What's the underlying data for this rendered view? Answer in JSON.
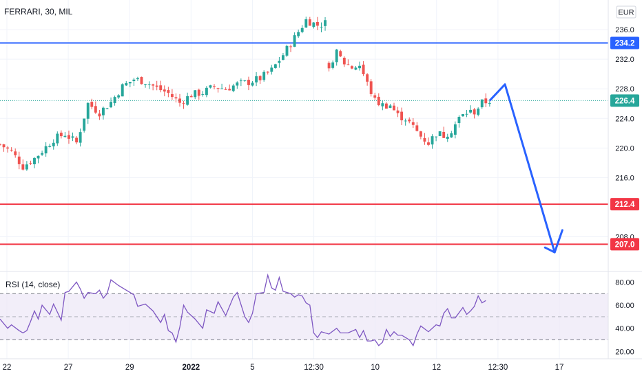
{
  "header": {
    "symbol_title": "FERRARI, 30, MIL",
    "currency_label": "EUR"
  },
  "colors": {
    "up": "#26a69a",
    "down": "#ef5350",
    "resistance": "#2962ff",
    "support": "#f23645",
    "rsi_line": "#7e57c2",
    "rsi_band": "#ede7f6",
    "grid": "#f0f3fa",
    "axis_text": "#131722"
  },
  "chart_data": [
    {
      "type": "candlestick",
      "title": "FERRARI, 30, MIL",
      "ylim": [
        203.5,
        240.0
      ],
      "y_ticks": [
        "236.0",
        "232.0",
        "228.0",
        "224.0",
        "220.0",
        "216.0",
        "208.0"
      ],
      "x_ticks": [
        "22",
        "27",
        "29",
        "2022",
        "5",
        "12:30",
        "10",
        "12",
        "12:30",
        "17"
      ],
      "last_price": 226.4,
      "price_labels": [
        {
          "name": "resistance",
          "value": "234.2"
        },
        {
          "name": "last",
          "value": "226.4"
        },
        {
          "name": "support-1",
          "value": "212.4"
        },
        {
          "name": "support-2",
          "value": "207.0"
        }
      ],
      "horizontal_lines": [
        {
          "name": "resistance",
          "value": 234.2,
          "color": "#2962ff"
        },
        {
          "name": "support-1",
          "value": 212.4,
          "color": "#f23645"
        },
        {
          "name": "support-2",
          "value": 207.0,
          "color": "#f23645"
        }
      ],
      "close_path": [
        [
          0,
          220.5
        ],
        [
          3,
          219.5
        ],
        [
          6,
          217.5
        ],
        [
          9,
          218.6
        ],
        [
          11,
          219.6
        ],
        [
          14,
          221.2
        ],
        [
          17,
          221.9
        ],
        [
          20,
          220.7
        ],
        [
          23,
          226.0
        ],
        [
          26,
          224.8
        ],
        [
          29,
          226.2
        ],
        [
          32,
          228.3
        ],
        [
          35,
          229.3
        ],
        [
          38,
          229.0
        ],
        [
          41,
          228.1
        ],
        [
          44,
          227.4
        ],
        [
          47,
          226.1
        ],
        [
          50,
          227.2
        ],
        [
          53,
          227.5
        ],
        [
          56,
          228.3
        ],
        [
          59,
          228.0
        ],
        [
          62,
          228.6
        ],
        [
          65,
          228.9
        ],
        [
          68,
          229.4
        ],
        [
          71,
          230.5
        ],
        [
          74,
          232.6
        ],
        [
          77,
          234.9
        ],
        [
          80,
          237.3
        ],
        [
          83,
          236.6
        ],
        [
          85,
          236.9
        ],
        [
          86,
          231.3
        ],
        [
          88,
          232.8
        ],
        [
          90,
          231.5
        ],
        [
          92,
          230.9
        ],
        [
          94,
          231.2
        ],
        [
          96,
          228.7
        ],
        [
          98,
          226.4
        ],
        [
          100,
          225.8
        ],
        [
          102,
          225.8
        ],
        [
          104,
          224.4
        ],
        [
          106,
          224.0
        ],
        [
          108,
          222.8
        ],
        [
          110,
          221.6
        ],
        [
          112,
          220.7
        ],
        [
          114,
          222.0
        ],
        [
          116,
          221.7
        ],
        [
          118,
          222.4
        ],
        [
          120,
          224.0
        ],
        [
          122,
          224.8
        ],
        [
          124,
          224.9
        ],
        [
          126,
          226.1
        ],
        [
          128,
          226.4
        ]
      ],
      "projection": [
        [
          128,
          226.4
        ],
        [
          132,
          228.6
        ],
        [
          145,
          205.9
        ],
        [
          147,
          208.9
        ]
      ],
      "x_max": 159
    },
    {
      "type": "line",
      "title": "RSI (14, close)",
      "ylim": [
        16,
        88
      ],
      "y_ticks": [
        "80.00",
        "60.00",
        "40.00",
        "20.00"
      ],
      "bands": [
        70,
        50,
        30
      ],
      "x_max": 159,
      "points": [
        [
          0,
          48
        ],
        [
          2,
          40
        ],
        [
          3,
          43
        ],
        [
          5,
          38
        ],
        [
          6,
          36
        ],
        [
          7,
          38
        ],
        [
          8,
          46
        ],
        [
          9,
          55
        ],
        [
          10,
          48
        ],
        [
          11,
          60
        ],
        [
          13,
          52
        ],
        [
          14,
          61
        ],
        [
          15,
          54
        ],
        [
          16,
          47
        ],
        [
          17,
          71
        ],
        [
          18,
          72
        ],
        [
          20,
          80
        ],
        [
          21,
          74
        ],
        [
          22,
          66
        ],
        [
          23,
          71
        ],
        [
          25,
          70
        ],
        [
          26,
          73
        ],
        [
          27,
          66
        ],
        [
          28,
          70
        ],
        [
          29,
          82
        ],
        [
          31,
          77
        ],
        [
          33,
          73
        ],
        [
          35,
          69
        ],
        [
          36,
          59
        ],
        [
          38,
          61
        ],
        [
          40,
          55
        ],
        [
          42,
          45
        ],
        [
          43,
          52
        ],
        [
          44,
          38
        ],
        [
          45,
          36
        ],
        [
          46,
          28
        ],
        [
          47,
          41
        ],
        [
          48,
          60
        ],
        [
          49,
          54
        ],
        [
          51,
          48
        ],
        [
          53,
          40
        ],
        [
          54,
          56
        ],
        [
          56,
          53
        ],
        [
          57,
          63
        ],
        [
          59,
          51
        ],
        [
          61,
          67
        ],
        [
          62,
          71
        ],
        [
          64,
          50
        ],
        [
          65,
          45
        ],
        [
          66,
          53
        ],
        [
          67,
          70
        ],
        [
          69,
          71
        ],
        [
          70,
          86
        ],
        [
          71,
          75
        ],
        [
          72,
          73
        ],
        [
          73,
          84
        ],
        [
          74,
          72
        ],
        [
          76,
          70
        ],
        [
          77,
          67
        ],
        [
          78,
          69
        ],
        [
          79,
          68
        ],
        [
          80,
          62
        ],
        [
          81,
          60
        ],
        [
          82,
          36
        ],
        [
          83,
          32
        ],
        [
          84,
          37
        ],
        [
          86,
          35
        ],
        [
          88,
          40
        ],
        [
          89,
          36
        ],
        [
          91,
          36
        ],
        [
          93,
          39
        ],
        [
          94,
          32
        ],
        [
          95,
          38
        ],
        [
          96,
          29
        ],
        [
          97,
          29
        ],
        [
          98,
          30
        ],
        [
          99,
          25
        ],
        [
          100,
          28
        ],
        [
          101,
          39
        ],
        [
          102,
          33
        ],
        [
          103,
          37
        ],
        [
          104,
          34
        ],
        [
          105,
          34
        ],
        [
          106,
          32
        ],
        [
          107,
          30
        ],
        [
          108,
          25
        ],
        [
          109,
          35
        ],
        [
          110,
          42
        ],
        [
          112,
          37
        ],
        [
          114,
          43
        ],
        [
          115,
          42
        ],
        [
          116,
          53
        ],
        [
          117,
          57
        ],
        [
          118,
          49
        ],
        [
          119,
          49
        ],
        [
          121,
          58
        ],
        [
          122,
          52
        ],
        [
          123,
          55
        ],
        [
          124,
          59
        ],
        [
          125,
          68
        ],
        [
          126,
          62
        ],
        [
          127,
          64
        ]
      ]
    }
  ]
}
